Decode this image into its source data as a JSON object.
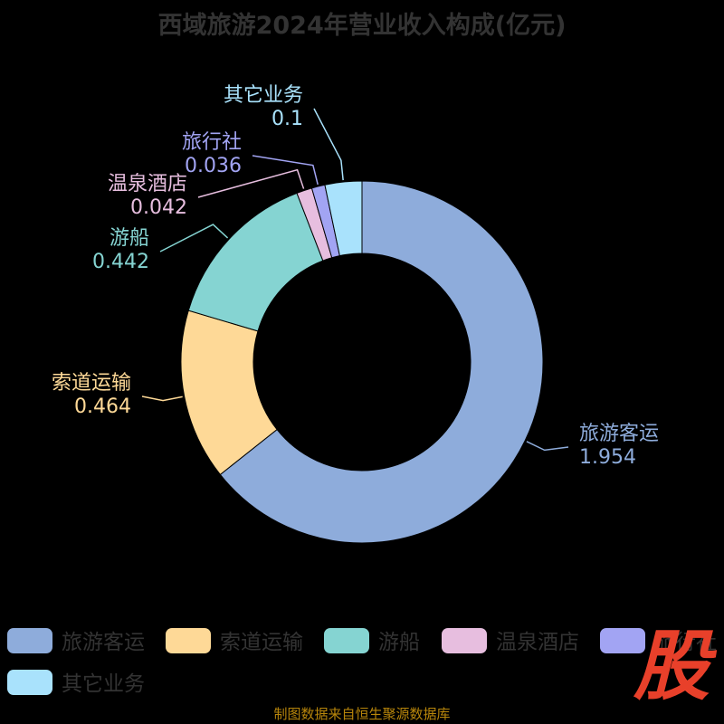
{
  "title": "西域旅游2024年营业收入构成(亿元)",
  "footer": "制图数据来自恒生聚源数据库",
  "logo": "股",
  "chart_data": {
    "type": "pie",
    "variant": "donut",
    "title": "西域旅游2024年营业收入构成(亿元)",
    "unit": "亿元",
    "series": [
      {
        "name": "旅游客运",
        "value": 1.954,
        "label": "1.954",
        "color": "#8eacdb"
      },
      {
        "name": "索道运输",
        "value": 0.464,
        "label": "0.464",
        "color": "#fed997"
      },
      {
        "name": "游船",
        "value": 0.442,
        "label": "0.442",
        "color": "#85d4d2"
      },
      {
        "name": "温泉酒店",
        "value": 0.042,
        "label": "0.042",
        "color": "#e7bedf"
      },
      {
        "name": "旅行社",
        "value": 0.036,
        "label": "0.036",
        "color": "#a2a4f3"
      },
      {
        "name": "其它业务",
        "value": 0.1,
        "label": "0.1",
        "color": "#a9e2fc"
      }
    ],
    "legend_position": "bottom"
  }
}
